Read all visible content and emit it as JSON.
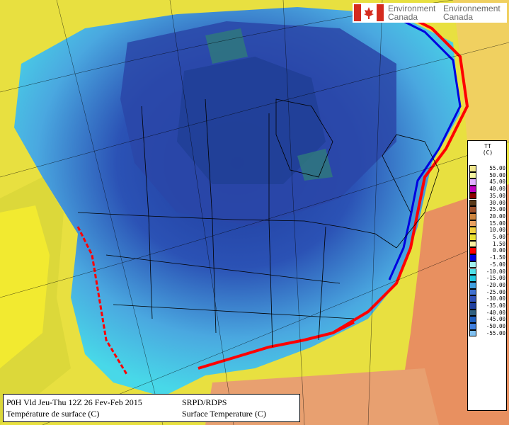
{
  "brand": {
    "line1_left": "Environment",
    "line2_left": "Canada",
    "line1_right": "Environnement",
    "line2_right": "Canada",
    "flag_icon": "canada-flag-icon"
  },
  "legend": {
    "title_line1": "TT",
    "title_line2": "(C)",
    "entries": [
      {
        "label": "55.00",
        "color": "#f0e68c"
      },
      {
        "label": "50.00",
        "color": "#f5f5a0"
      },
      {
        "label": "45.00",
        "color": "#e0b0ff"
      },
      {
        "label": "40.00",
        "color": "#c000c0"
      },
      {
        "label": "35.00",
        "color": "#8b0000"
      },
      {
        "label": "30.00",
        "color": "#5a3a1a"
      },
      {
        "label": "25.00",
        "color": "#a0522d"
      },
      {
        "label": "20.00",
        "color": "#cd853f"
      },
      {
        "label": "15.00",
        "color": "#e8a060"
      },
      {
        "label": "10.00",
        "color": "#f0d040"
      },
      {
        "label": "5.00",
        "color": "#e8e030"
      },
      {
        "label": "1.50",
        "color": "#f8f0a0"
      },
      {
        "label": "0.00",
        "color": "#ff0000"
      },
      {
        "label": "-1.50",
        "color": "#0000e0"
      },
      {
        "label": "-5.00",
        "color": "#a0f0f0"
      },
      {
        "label": "-10.00",
        "color": "#50e0e8"
      },
      {
        "label": "-15.00",
        "color": "#20c8e0"
      },
      {
        "label": "-20.00",
        "color": "#40a0e0"
      },
      {
        "label": "-25.00",
        "color": "#4070d0"
      },
      {
        "label": "-30.00",
        "color": "#3050b8"
      },
      {
        "label": "-35.00",
        "color": "#2040a0"
      },
      {
        "label": "-40.00",
        "color": "#306080"
      },
      {
        "label": "-45.00",
        "color": "#2060c0"
      },
      {
        "label": "-50.00",
        "color": "#4080e0"
      },
      {
        "label": "-55.00",
        "color": "#80c0f0"
      }
    ]
  },
  "info": {
    "line1_left": "P0H Vld Jeu-Thu 12Z 26 Fev-Feb 2015",
    "line2_left": "Température de surface (C)",
    "line1_right": "SRPD/RDPS",
    "line2_right": "Surface Temperature (C)"
  }
}
